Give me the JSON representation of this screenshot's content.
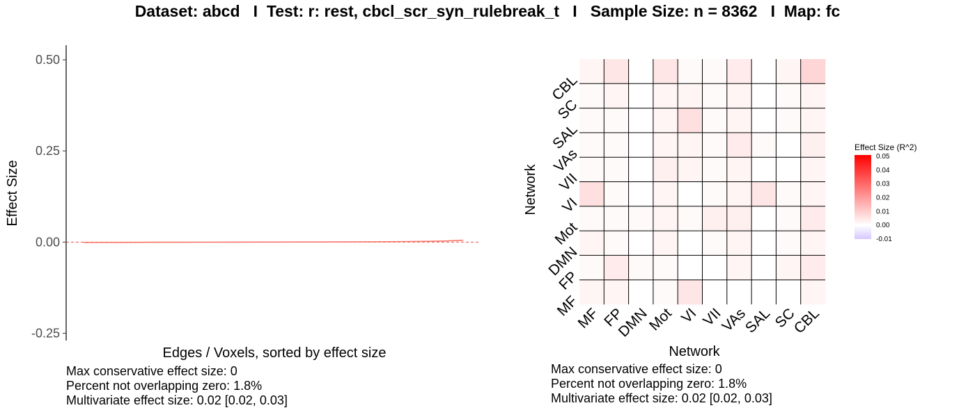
{
  "title": "Dataset: abcd   I  Test: r: rest, cbcl_scr_syn_rulebreak_t   I   Sample Size: n = 8362   I  Map: fc",
  "colors": {
    "curve": "#f8766d",
    "zero_line": "#e4504a",
    "heat_high": "#ff0000",
    "heat_mid": "#ffffff",
    "heat_low": "#d5c8ff"
  },
  "chart_data": [
    {
      "type": "line",
      "xlabel": "Edges / Voxels, sorted by effect size",
      "ylabel": "Effect Size",
      "ylim": [
        -0.27,
        0.54
      ],
      "yticks": [
        {
          "value": -0.25,
          "label": "-0.25"
        },
        {
          "value": 0.0,
          "label": "0.00"
        },
        {
          "value": 0.25,
          "label": "0.25"
        },
        {
          "value": 0.5,
          "label": "0.50"
        }
      ],
      "x": [
        0,
        0.1,
        0.2,
        0.3,
        0.4,
        0.5,
        0.6,
        0.7,
        0.8,
        0.85,
        0.9,
        0.95,
        1.0
      ],
      "series": [
        {
          "values": [
            -0.001,
            -0.0008,
            -0.0006,
            -0.0004,
            -0.0002,
            0.0,
            0.0002,
            0.0005,
            0.001,
            0.0015,
            0.002,
            0.003,
            0.005
          ]
        }
      ],
      "reference_line": {
        "y": 0,
        "style": "dashed"
      },
      "grid": false,
      "stats": [
        "Max conservative effect size: 0",
        "Percent not overlapping zero: 1.8%",
        "Multivariate effect size: 0.02 [0.02, 0.03]"
      ]
    },
    {
      "type": "heatmap",
      "xlabel": "Network",
      "ylabel": "Network",
      "x_categories": [
        "MF",
        "FP",
        "DMN",
        "Mot",
        "VI",
        "VII",
        "VAs",
        "SAL",
        "SC",
        "CBL"
      ],
      "y_categories": [
        "MF",
        "FP",
        "DMN",
        "Mot",
        "VI",
        "VII",
        "VAs",
        "SAL",
        "SC",
        "CBL"
      ],
      "values": [
        [
          0.002,
          0.002,
          0.0,
          0.001,
          0.005,
          0.0,
          0.0,
          0.0,
          0.0,
          0.002
        ],
        [
          0.001,
          0.004,
          0.001,
          0.001,
          0.0,
          0.0,
          0.002,
          0.0,
          0.002,
          0.004
        ],
        [
          0.002,
          0.001,
          0.0,
          0.002,
          0.0,
          0.001,
          0.002,
          0.0,
          0.001,
          0.002
        ],
        [
          0.001,
          0.001,
          0.001,
          0.002,
          0.001,
          0.003,
          0.003,
          0.0,
          0.001,
          0.004
        ],
        [
          0.006,
          0.001,
          0.0,
          0.002,
          0.0,
          0.001,
          0.002,
          0.005,
          0.001,
          0.002
        ],
        [
          0.001,
          0.001,
          0.0,
          0.003,
          0.002,
          0.001,
          0.002,
          0.0,
          0.0,
          0.002
        ],
        [
          0.001,
          0.001,
          0.0,
          0.002,
          0.002,
          0.001,
          0.004,
          0.001,
          0.0,
          0.003
        ],
        [
          0.001,
          0.001,
          0.0,
          0.002,
          0.006,
          0.001,
          0.002,
          0.0,
          0.001,
          0.002
        ],
        [
          0.001,
          0.002,
          0.0,
          0.002,
          0.002,
          0.001,
          0.002,
          0.0,
          0.001,
          0.002
        ],
        [
          0.002,
          0.005,
          0.0,
          0.005,
          0.001,
          0.001,
          0.004,
          0.0,
          0.002,
          0.008
        ]
      ],
      "legend": {
        "title": "Effect Size (R^2)",
        "min": -0.01,
        "max": 0.05,
        "ticks": [
          "0.05",
          "0.04",
          "0.03",
          "0.02",
          "0.01",
          "0.00",
          "-0.01"
        ],
        "placement": "right"
      },
      "stats": [
        "Max conservative effect size: 0",
        "Percent not overlapping zero: 1.8%",
        "Multivariate effect size: 0.02 [0.02, 0.03]"
      ]
    }
  ]
}
